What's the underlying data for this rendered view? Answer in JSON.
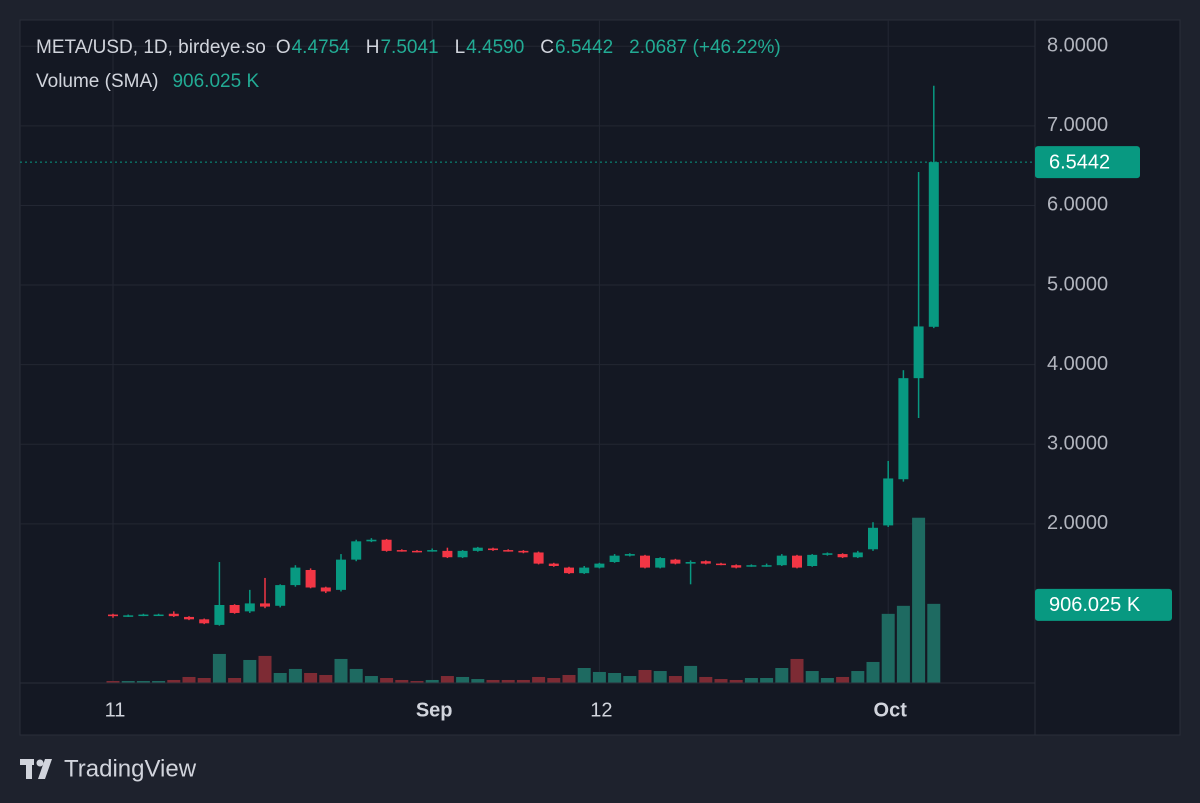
{
  "chart_data": {
    "type": "candlestick",
    "legend_title": "META/USD, 1D, birdeye.so",
    "ohlc_legend": [
      [
        "O",
        "4.4754"
      ],
      [
        "H",
        "7.5041"
      ],
      [
        "L",
        "4.4590"
      ],
      [
        "C",
        "6.5442"
      ]
    ],
    "change": "2.0687 (+46.22%)",
    "volume_title": "Volume (SMA)",
    "volume_sma": {
      "value": 906.025,
      "label": "906.025 K"
    },
    "categories": [
      "11",
      null,
      null,
      null,
      null,
      null,
      null,
      null,
      null,
      null,
      null,
      null,
      null,
      null,
      null,
      null,
      null,
      null,
      null,
      null,
      null,
      "Sep",
      null,
      null,
      null,
      null,
      null,
      null,
      null,
      null,
      null,
      null,
      "12",
      null,
      null,
      null,
      null,
      null,
      null,
      null,
      null,
      null,
      null,
      null,
      null,
      null,
      null,
      null,
      null,
      null,
      null,
      "Oct",
      null,
      null,
      null
    ],
    "open": [
      0.86,
      0.84,
      0.85,
      0.86,
      0.87,
      0.83,
      0.8,
      0.73,
      0.98,
      0.9,
      1.0,
      0.97,
      1.23,
      1.42,
      1.2,
      1.17,
      1.55,
      1.78,
      1.8,
      1.67,
      1.66,
      1.66,
      1.66,
      1.58,
      1.66,
      1.69,
      1.67,
      1.66,
      1.64,
      1.5,
      1.45,
      1.38,
      1.45,
      1.52,
      1.6,
      1.6,
      1.45,
      1.55,
      1.5,
      1.53,
      1.5,
      1.48,
      1.47,
      1.47,
      1.48,
      1.6,
      1.47,
      1.61,
      1.62,
      1.58,
      1.68,
      1.98,
      2.56,
      3.83,
      4.4754
    ],
    "high": [
      0.87,
      0.86,
      0.87,
      0.87,
      0.9,
      0.84,
      0.81,
      1.52,
      0.99,
      1.17,
      1.32,
      1.24,
      1.48,
      1.44,
      1.21,
      1.62,
      1.8,
      1.82,
      1.81,
      1.68,
      1.67,
      1.69,
      1.7,
      1.67,
      1.71,
      1.7,
      1.68,
      1.67,
      1.65,
      1.51,
      1.46,
      1.47,
      1.51,
      1.62,
      1.63,
      1.61,
      1.58,
      1.56,
      1.54,
      1.54,
      1.51,
      1.49,
      1.49,
      1.5,
      1.62,
      1.61,
      1.62,
      1.64,
      1.63,
      1.66,
      2.02,
      2.79,
      3.93,
      6.42,
      7.5041
    ],
    "low": [
      0.82,
      0.83,
      0.84,
      0.85,
      0.83,
      0.79,
      0.74,
      0.72,
      0.87,
      0.88,
      0.94,
      0.95,
      1.21,
      1.19,
      1.13,
      1.15,
      1.53,
      1.77,
      1.65,
      1.65,
      1.64,
      1.65,
      1.57,
      1.57,
      1.65,
      1.66,
      1.65,
      1.63,
      1.49,
      1.46,
      1.37,
      1.37,
      1.44,
      1.51,
      1.59,
      1.44,
      1.44,
      1.49,
      1.24,
      1.49,
      1.48,
      1.44,
      1.46,
      1.46,
      1.47,
      1.44,
      1.46,
      1.6,
      1.57,
      1.57,
      1.66,
      1.96,
      2.53,
      3.33,
      4.459
    ],
    "close": [
      0.84,
      0.85,
      0.86,
      0.86,
      0.84,
      0.8,
      0.75,
      0.98,
      0.88,
      1.0,
      0.96,
      1.23,
      1.45,
      1.2,
      1.15,
      1.55,
      1.78,
      1.8,
      1.66,
      1.66,
      1.65,
      1.67,
      1.58,
      1.66,
      1.7,
      1.67,
      1.66,
      1.64,
      1.5,
      1.47,
      1.38,
      1.45,
      1.5,
      1.6,
      1.62,
      1.45,
      1.57,
      1.5,
      1.52,
      1.5,
      1.49,
      1.45,
      1.48,
      1.48,
      1.6,
      1.45,
      1.61,
      1.63,
      1.58,
      1.64,
      1.95,
      2.57,
      3.83,
      4.48,
      6.5442
    ],
    "volume": [
      23,
      23,
      23,
      23,
      35,
      70,
      58,
      337,
      58,
      267,
      314,
      116,
      163,
      116,
      93,
      279,
      163,
      81,
      58,
      35,
      23,
      35,
      81,
      70,
      46,
      35,
      35,
      35,
      70,
      58,
      93,
      174,
      128,
      116,
      81,
      151,
      139,
      81,
      198,
      70,
      46,
      35,
      58,
      58,
      174,
      279,
      139,
      58,
      70,
      139,
      244,
      802,
      895,
      1917,
      918
    ],
    "ylim": [
      0,
      8.33
    ],
    "yticks": [
      {
        "value": 2,
        "label": "2.0000"
      },
      {
        "value": 3,
        "label": "3.0000"
      },
      {
        "value": 4,
        "label": "4.0000"
      },
      {
        "value": 5,
        "label": "5.0000"
      },
      {
        "value": 6,
        "label": "6.0000"
      },
      {
        "value": 7,
        "label": "7.0000"
      },
      {
        "value": 8,
        "label": "8.0000"
      }
    ],
    "volume_ylim": [
      0,
      7690
    ],
    "grid": true,
    "up_color": "#089981",
    "down_color": "#f23645",
    "volume_up_color": "#1e6a61",
    "volume_down_color": "#7d2b34",
    "brand": "TradingView"
  }
}
